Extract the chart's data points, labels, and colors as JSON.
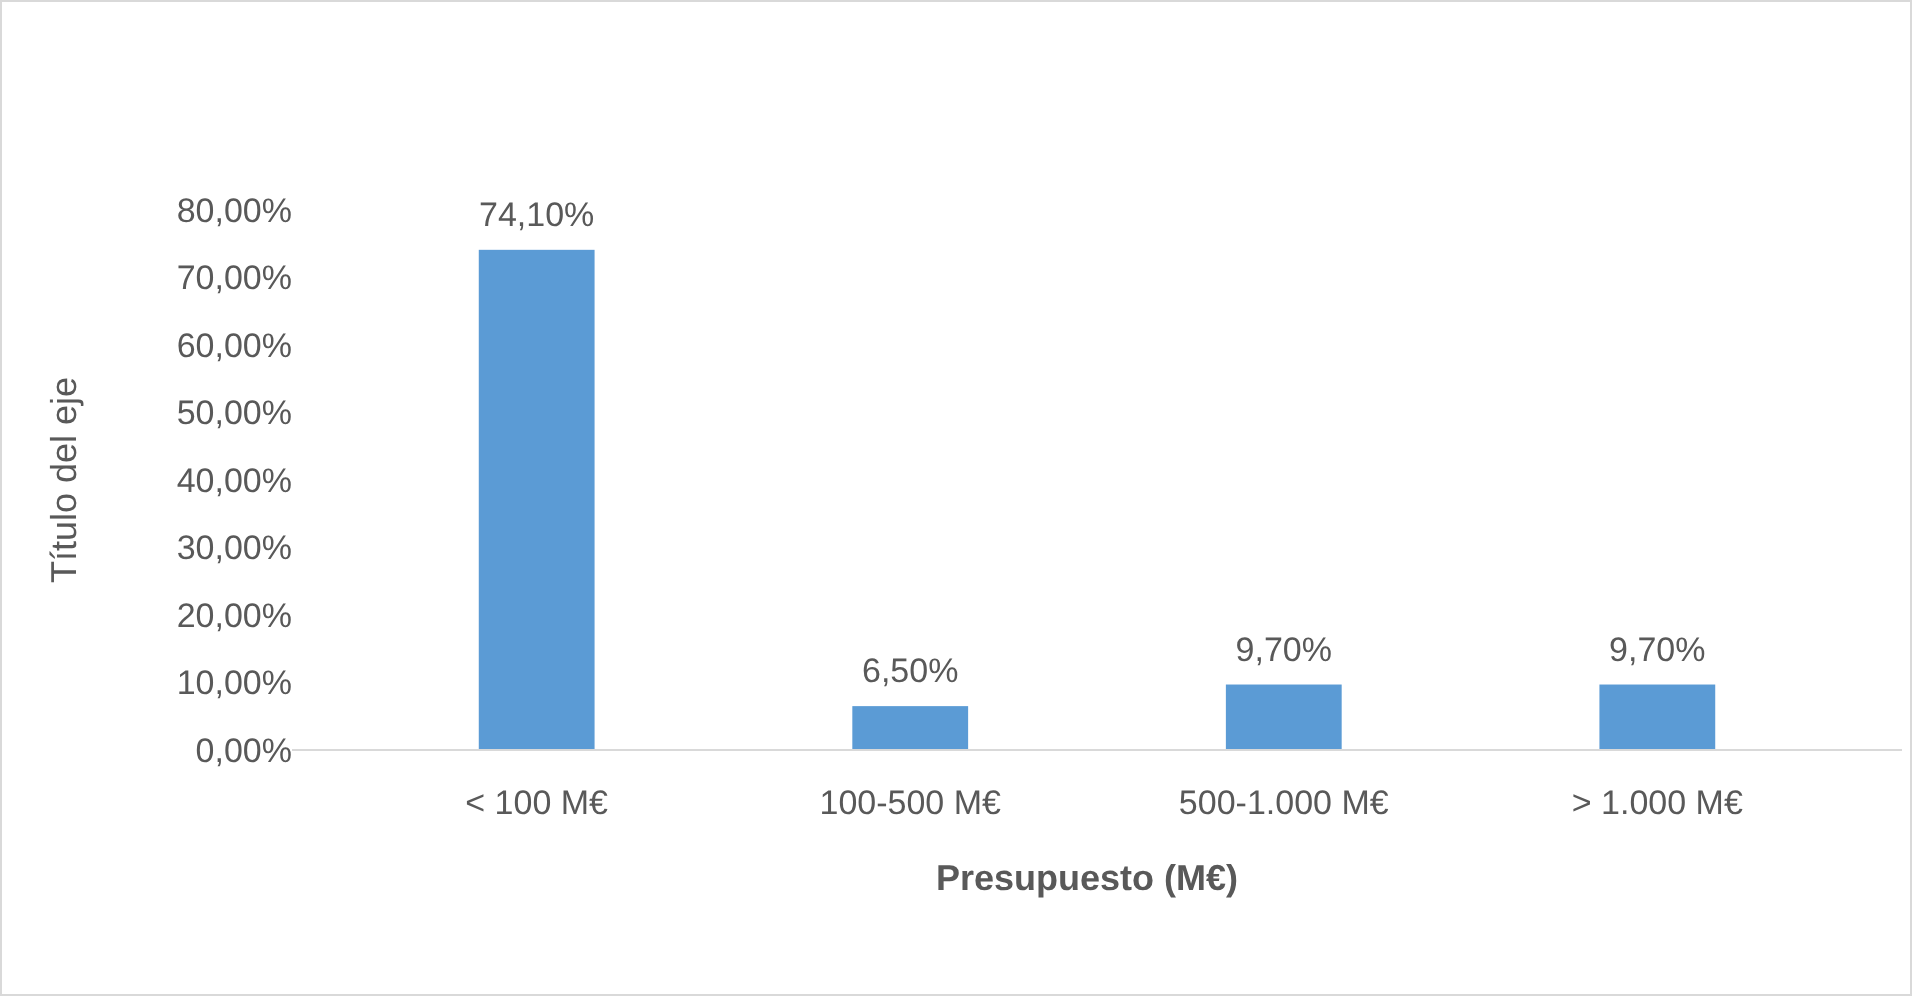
{
  "chart_data": {
    "type": "bar",
    "xlabel": "Presupuesto (M€)",
    "ylabel": "Título del eje",
    "categories": [
      "< 100 M€",
      "100-500 M€",
      "500-1.000 M€",
      "> 1.000 M€"
    ],
    "values": [
      74.1,
      6.5,
      9.7,
      9.7
    ],
    "value_labels": [
      "74,10%",
      "6,50%",
      "9,70%",
      "9,70%"
    ],
    "color": "#5b9bd5",
    "ylim": [
      0,
      80
    ],
    "yticks": [
      {
        "value": 0,
        "label": "0,00%"
      },
      {
        "value": 10,
        "label": "10,00%"
      },
      {
        "value": 20,
        "label": "20,00%"
      },
      {
        "value": 30,
        "label": "30,00%"
      },
      {
        "value": 40,
        "label": "40,00%"
      },
      {
        "value": 50,
        "label": "50,00%"
      },
      {
        "value": 60,
        "label": "60,00%"
      },
      {
        "value": 70,
        "label": "70,00%"
      },
      {
        "value": 80,
        "label": "80,00%"
      }
    ],
    "grid": false
  }
}
